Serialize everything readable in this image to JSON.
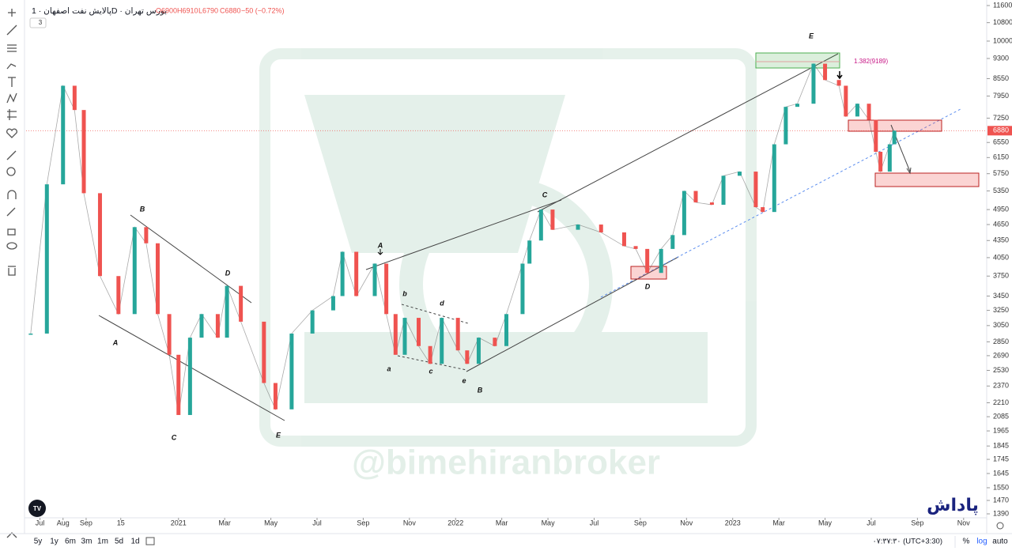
{
  "header": {
    "symbol": "پالایش نفت اصفهان · 1D · بورس تهران",
    "open": "O6900",
    "high": "H6910",
    "low": "L6790",
    "close": "C6880",
    "change": "−50 (−0.72%)",
    "indicator_count": "3"
  },
  "chart": {
    "type": "candlestick",
    "log_scale": true,
    "grid": false,
    "ylim": [
      1390,
      11600
    ],
    "yticks": [
      11600,
      10800,
      10000,
      9300,
      8550,
      7950,
      7250,
      6550,
      6150,
      5750,
      5350,
      4950,
      4650,
      4350,
      4050,
      3750,
      3450,
      3250,
      3050,
      2850,
      2690,
      2530,
      2370,
      2210,
      2085,
      1965,
      1845,
      1745,
      1645,
      1550,
      1470,
      1390
    ],
    "xlim": [
      -0.6,
      41
    ],
    "xticks": [
      {
        "value": 0,
        "label": "Jul"
      },
      {
        "value": 1,
        "label": "Aug"
      },
      {
        "value": 2,
        "label": "Sep"
      },
      {
        "value": 3.5,
        "label": "15"
      },
      {
        "value": 6,
        "label": "2021"
      },
      {
        "value": 8,
        "label": "Mar"
      },
      {
        "value": 10,
        "label": "May"
      },
      {
        "value": 12,
        "label": "Jul"
      },
      {
        "value": 14,
        "label": "Sep"
      },
      {
        "value": 16,
        "label": "Nov"
      },
      {
        "value": 18,
        "label": "2022"
      },
      {
        "value": 20,
        "label": "Mar"
      },
      {
        "value": 22,
        "label": "May"
      },
      {
        "value": 24,
        "label": "Jul"
      },
      {
        "value": 26,
        "label": "Sep"
      },
      {
        "value": 28,
        "label": "Nov"
      },
      {
        "value": 30,
        "label": "2023"
      },
      {
        "value": 32,
        "label": "Mar"
      },
      {
        "value": 34,
        "label": "May"
      },
      {
        "value": 36,
        "label": "Jul"
      },
      {
        "value": 38,
        "label": "Sep"
      },
      {
        "value": 40,
        "label": "Nov"
      }
    ],
    "close": {
      "up_color": "#26a69a",
      "down_color": "#ef5350",
      "line_color": "#555555",
      "x": [
        -0.4,
        0.3,
        1.0,
        1.5,
        1.9,
        2.6,
        3.4,
        4.1,
        4.6,
        5.1,
        5.6,
        6.0,
        6.5,
        7.0,
        7.7,
        8.1,
        8.7,
        9.7,
        10.2,
        10.9,
        11.8,
        12.7,
        13.1,
        13.7,
        14.5,
        15.0,
        15.4,
        15.8,
        16.4,
        16.9,
        17.4,
        18.1,
        18.5,
        19.0,
        19.7,
        20.2,
        20.9,
        21.2,
        21.7,
        22.2,
        23.3,
        24.3,
        25.3,
        25.8,
        26.3,
        26.9,
        27.4,
        27.9,
        28.4,
        29.1,
        29.6,
        30.3,
        31.0,
        31.3,
        31.8,
        32.3,
        32.8,
        33.5,
        34.0,
        34.6,
        34.9,
        35.4,
        35.9,
        36.2,
        36.4,
        36.8,
        37.0
      ],
      "values": [
        2950,
        5500,
        8300,
        7500,
        5300,
        3750,
        3200,
        4600,
        4300,
        3200,
        2700,
        2100,
        2900,
        3200,
        2900,
        3600,
        3100,
        2400,
        2150,
        2950,
        3250,
        3450,
        4150,
        3450,
        3950,
        3200,
        2700,
        3150,
        2800,
        2600,
        3150,
        2750,
        2600,
        2900,
        2800,
        3200,
        3950,
        4350,
        4950,
        4550,
        4650,
        4500,
        4250,
        4200,
        3800,
        4200,
        4450,
        5350,
        5100,
        5050,
        5700,
        5800,
        5000,
        4900,
        6500,
        7600,
        7700,
        9100,
        8500,
        8300,
        7300,
        7700,
        7200,
        6300,
        5800,
        6500,
        6880
      ]
    },
    "wave_labels": [
      "B",
      "A",
      "C",
      "D",
      "E",
      "A",
      "b",
      "d",
      "a",
      "c",
      "e",
      "B",
      "C",
      "D",
      "E"
    ],
    "fib_label": "1.382(9189)",
    "watermark": "@bimehiranbroker",
    "logo": "پاداش"
  },
  "bottom_bar": {
    "ranges": [
      "5y",
      "1y",
      "6m",
      "3m",
      "1m",
      "5d",
      "1d"
    ],
    "clock": "۰۷:۳۷:۳۰ (UTC+3:30)",
    "percent": "%",
    "log": "log",
    "auto": "auto"
  }
}
